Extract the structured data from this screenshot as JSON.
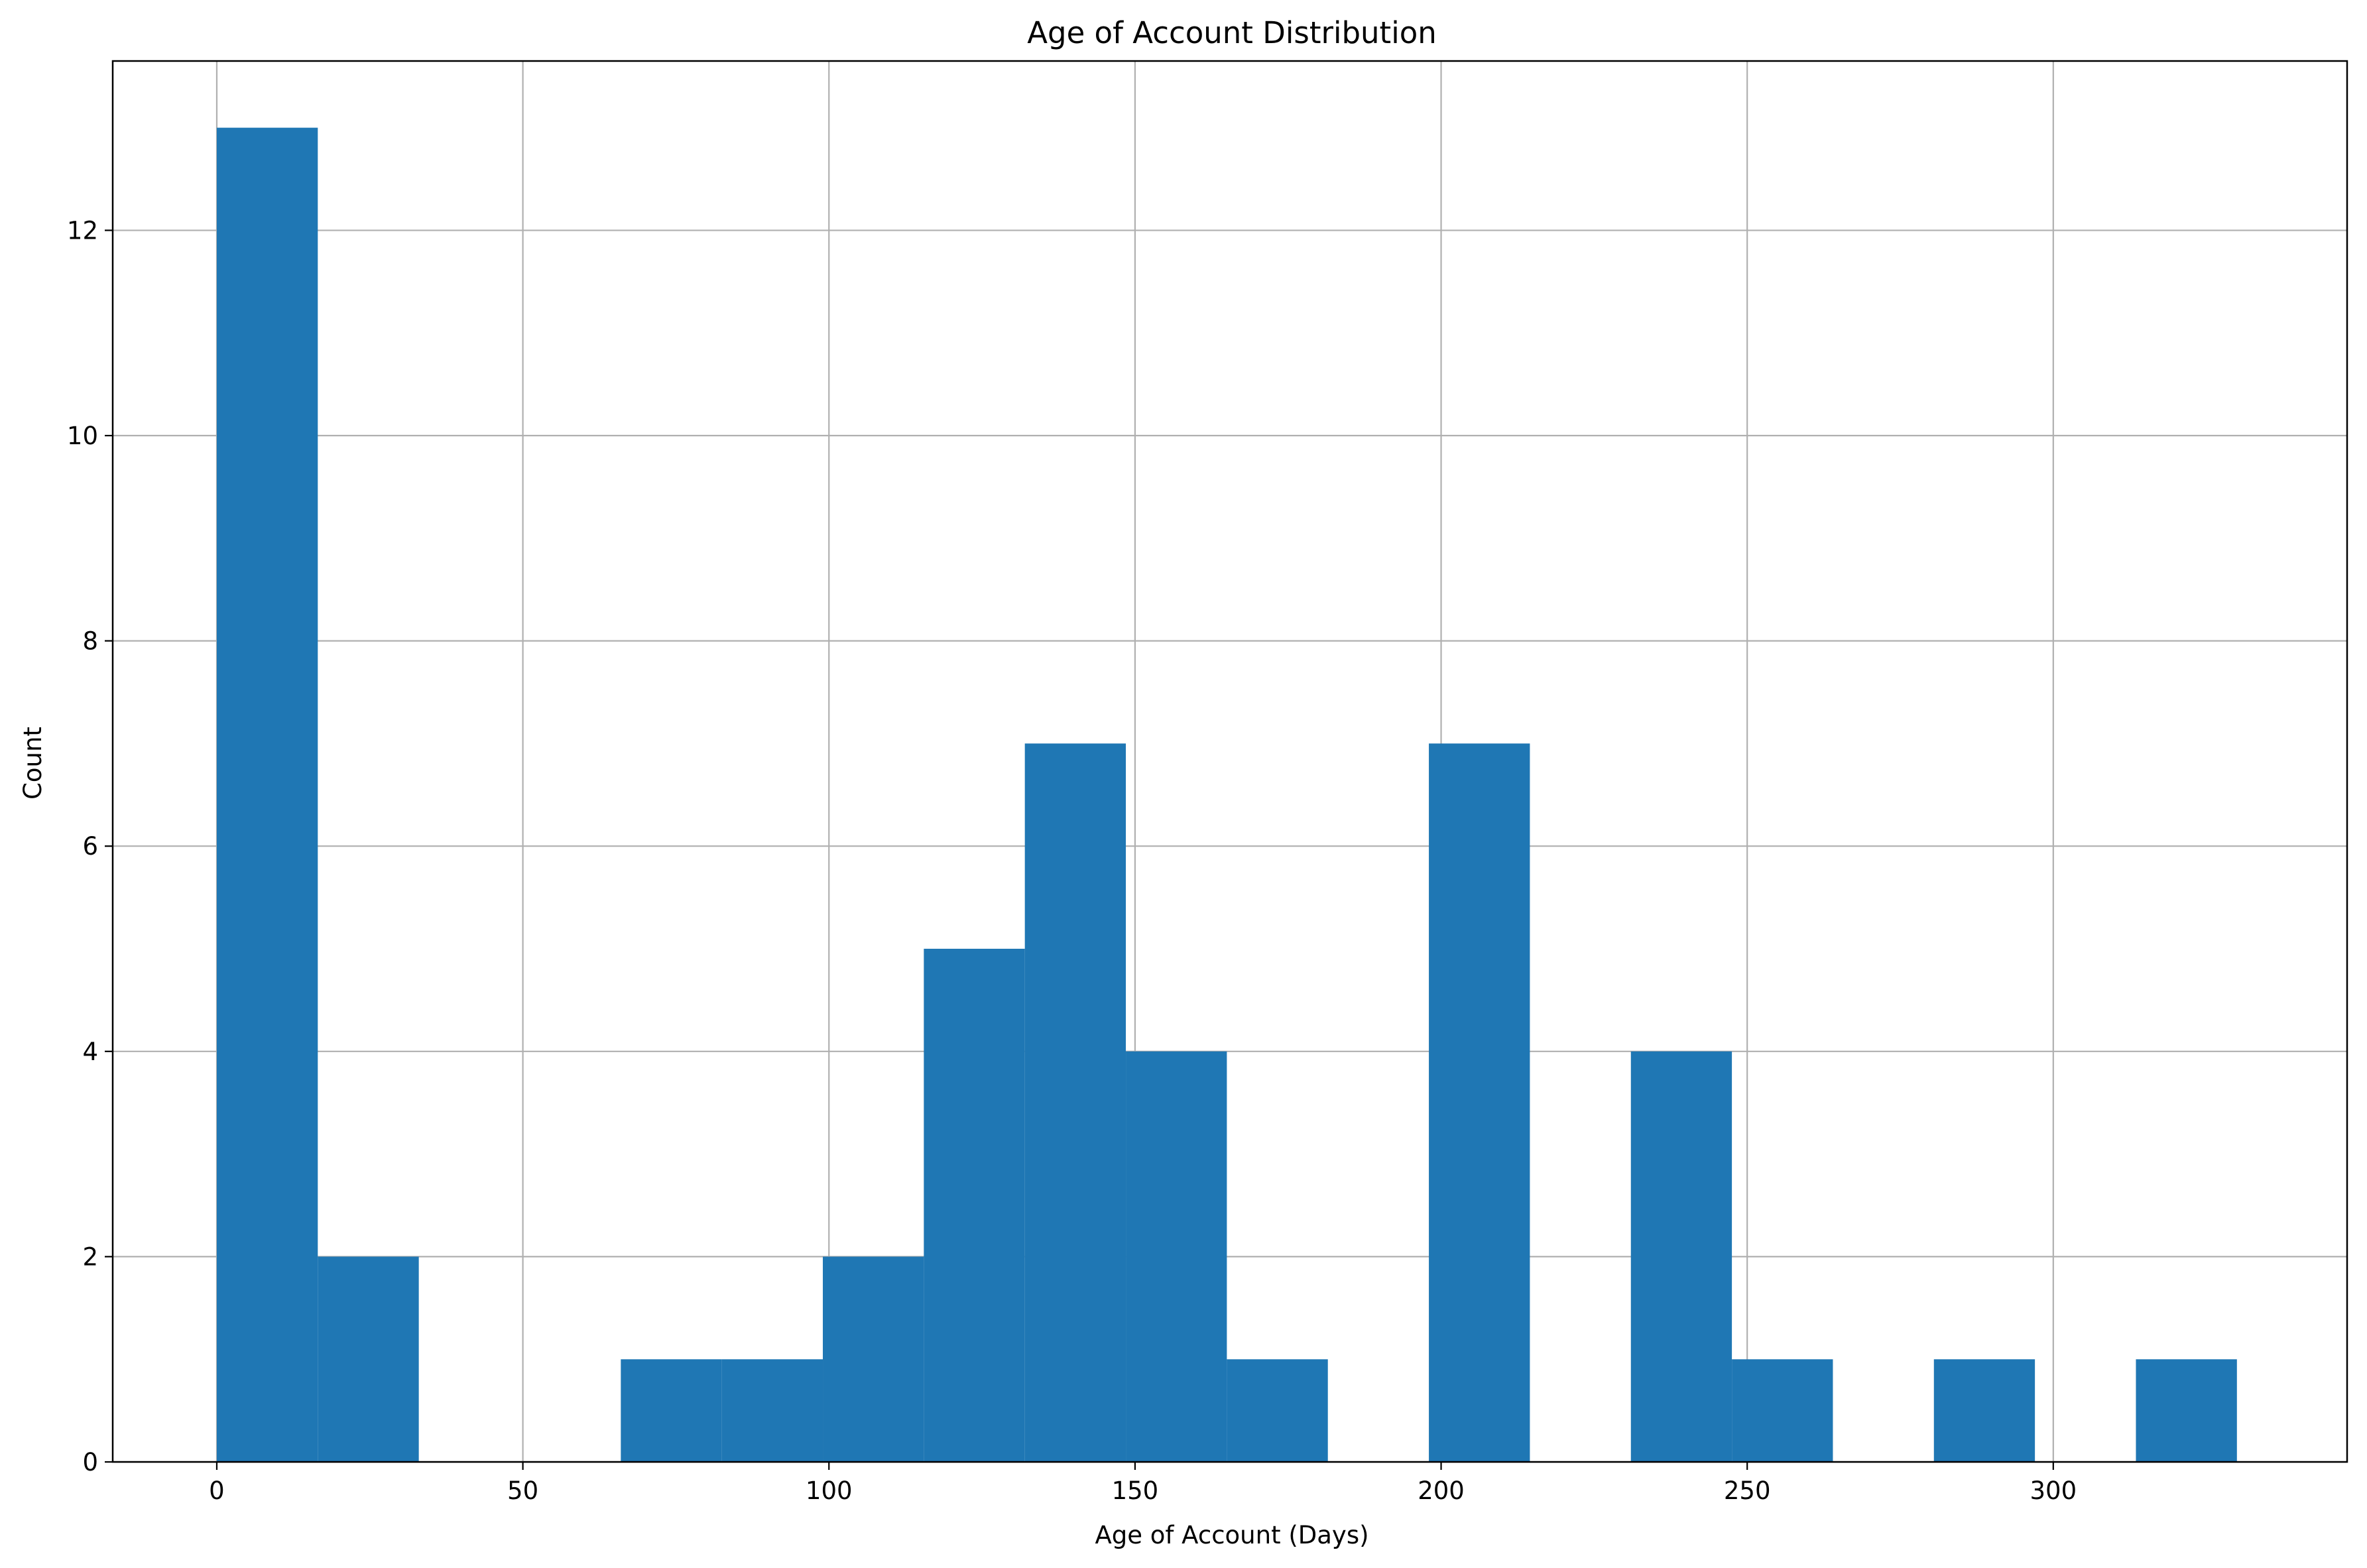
{
  "chart_data": {
    "type": "bar",
    "title": "Age of Account Distribution",
    "xlabel": "Age of Account (Days)",
    "ylabel": "Count",
    "xlim": [
      -17,
      348
    ],
    "ylim": [
      0,
      13.65
    ],
    "grid": true,
    "bar_color": "#1f77b4",
    "grid_color": "#b0b0b0",
    "x_ticks": [
      0,
      50,
      100,
      150,
      200,
      250,
      300
    ],
    "y_ticks": [
      0,
      2,
      4,
      6,
      8,
      10,
      12
    ],
    "bins": [
      {
        "x0": 0,
        "x1": 16.5,
        "count": 13
      },
      {
        "x0": 16.5,
        "x1": 33,
        "count": 2
      },
      {
        "x0": 33,
        "x1": 49.5,
        "count": 0
      },
      {
        "x0": 49.5,
        "x1": 66,
        "count": 0
      },
      {
        "x0": 66,
        "x1": 82.5,
        "count": 1
      },
      {
        "x0": 82.5,
        "x1": 99,
        "count": 1
      },
      {
        "x0": 99,
        "x1": 115.5,
        "count": 2
      },
      {
        "x0": 115.5,
        "x1": 132,
        "count": 5
      },
      {
        "x0": 132,
        "x1": 148.5,
        "count": 7
      },
      {
        "x0": 148.5,
        "x1": 165,
        "count": 4
      },
      {
        "x0": 165,
        "x1": 181.5,
        "count": 1
      },
      {
        "x0": 181.5,
        "x1": 198,
        "count": 0
      },
      {
        "x0": 198,
        "x1": 214.5,
        "count": 7
      },
      {
        "x0": 214.5,
        "x1": 231,
        "count": 0
      },
      {
        "x0": 231,
        "x1": 247.5,
        "count": 4
      },
      {
        "x0": 247.5,
        "x1": 264,
        "count": 1
      },
      {
        "x0": 264,
        "x1": 280.5,
        "count": 0
      },
      {
        "x0": 280.5,
        "x1": 297,
        "count": 1
      },
      {
        "x0": 297,
        "x1": 313.5,
        "count": 0
      },
      {
        "x0": 313.5,
        "x1": 330,
        "count": 1
      }
    ]
  }
}
